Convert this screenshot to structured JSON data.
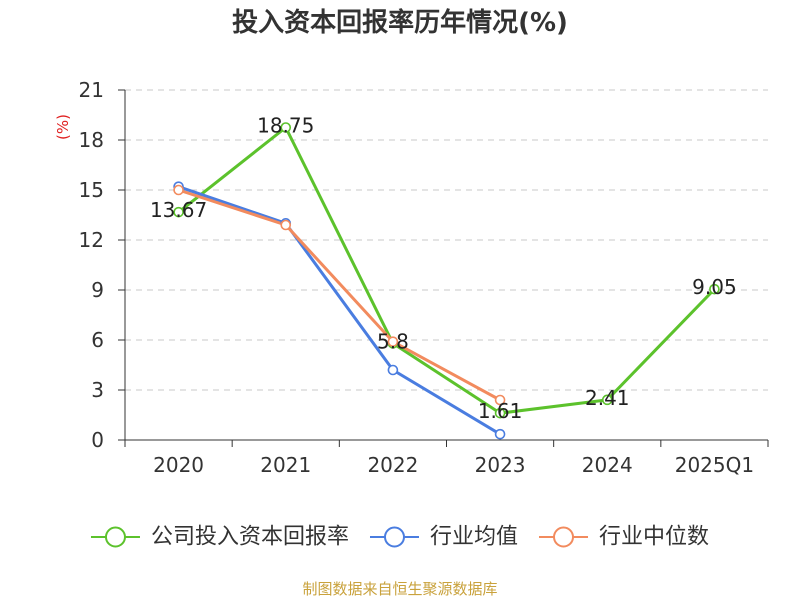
{
  "chart_data": {
    "type": "line",
    "title": "投入资本回报率历年情况(%)",
    "ylabel": "(%)",
    "categories": [
      "2020",
      "2021",
      "2022",
      "2023",
      "2024",
      "2025Q1"
    ],
    "y_range": [
      0,
      21
    ],
    "y_ticks": [
      0,
      3,
      6,
      9,
      12,
      15,
      18,
      21
    ],
    "grid": true,
    "legend": "bottom",
    "series": [
      {
        "name": "公司投入资本回报率",
        "color": "#5cc22c",
        "values": [
          13.67,
          18.75,
          5.8,
          1.61,
          2.41,
          9.05
        ],
        "show_data_labels": true
      },
      {
        "name": "行业均值",
        "color": "#4a7de0",
        "values": [
          15.2,
          13.0,
          4.2,
          0.35,
          null,
          null
        ],
        "show_data_labels": false
      },
      {
        "name": "行业中位数",
        "color": "#f28b5e",
        "values": [
          15.0,
          12.9,
          5.9,
          2.4,
          null,
          null
        ],
        "show_data_labels": false
      }
    ]
  },
  "source_note": "制图数据来自恒生聚源数据库",
  "colors": {
    "title": "#333333",
    "axis": "#333333",
    "grid": "#c8c8c8",
    "ylabel": "#e02020",
    "source_note": "#c9a23c"
  }
}
